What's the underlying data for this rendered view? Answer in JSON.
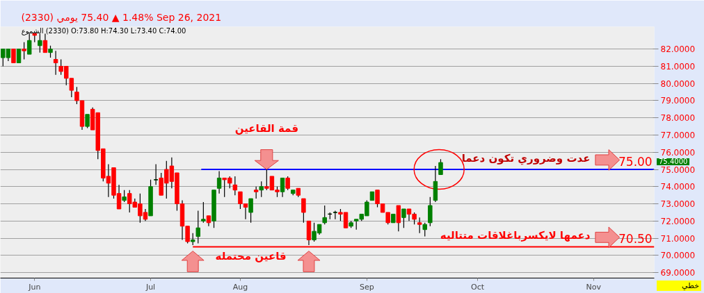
{
  "chart_data": {
    "type": "candlestick",
    "title": "(2330)  يومي   75.40 ▲ 1.48%   Sep 26, 2021",
    "subtitle": "الشموع (2330) O:73.80  H:74.30  L:73.40  C:74.00",
    "categories": [
      null,
      null,
      null,
      null,
      null,
      null,
      "Jun",
      null,
      null,
      null,
      null,
      null,
      null,
      null,
      null,
      null,
      null,
      null,
      null,
      null,
      null,
      null,
      null,
      null,
      null,
      null,
      null,
      null,
      "Jul",
      null,
      null,
      null,
      null,
      null,
      null,
      null,
      null,
      null,
      null,
      null,
      null,
      null,
      null,
      null,
      null,
      "Aug",
      null,
      null,
      null,
      null,
      null,
      null,
      null,
      null,
      null,
      null,
      null,
      null,
      null,
      null,
      null,
      null,
      null,
      null,
      null,
      null,
      null,
      null,
      null,
      "Sep",
      null,
      null,
      null,
      null,
      null,
      null,
      null,
      null,
      null,
      null,
      null,
      null,
      null,
      null,
      null,
      null,
      null,
      null,
      null,
      null,
      "Oct",
      null,
      null,
      null,
      null,
      null,
      null,
      null,
      null,
      null,
      null,
      null,
      null,
      null,
      null,
      null,
      null,
      null,
      null,
      null,
      null,
      null,
      "Nov",
      null,
      null,
      null,
      null,
      null,
      null,
      null,
      null,
      null,
      null,
      null
    ],
    "ohlc": [
      [
        81.5,
        82.0,
        81.0,
        82.0
      ],
      [
        81.5,
        82.0,
        81.3,
        82.0
      ],
      [
        82.0,
        82.0,
        81.2,
        81.2
      ],
      [
        81.2,
        82.0,
        81.2,
        82.0
      ],
      [
        82.0,
        82.4,
        81.4,
        81.9
      ],
      [
        81.7,
        82.9,
        81.7,
        82.5
      ],
      [
        82.9,
        82.9,
        82.4,
        82.8
      ],
      [
        82.2,
        82.9,
        81.8,
        82.5
      ],
      [
        82.5,
        82.9,
        81.8,
        81.8
      ],
      [
        81.8,
        82.2,
        81.5,
        82.0
      ],
      [
        81.4,
        81.9,
        80.5,
        81.2
      ],
      [
        81.0,
        81.4,
        80.5,
        80.7
      ],
      [
        81.0,
        81.0,
        79.9,
        80.3
      ],
      [
        80.3,
        80.3,
        79.2,
        79.6
      ],
      [
        79.5,
        79.8,
        78.8,
        79.0
      ],
      [
        79.0,
        79.0,
        77.3,
        77.5
      ],
      [
        77.5,
        78.2,
        77.4,
        78.2
      ],
      [
        78.5,
        78.6,
        77.3,
        77.3
      ],
      [
        78.3,
        78.3,
        75.6,
        76.1
      ],
      [
        76.2,
        76.2,
        74.3,
        74.5
      ],
      [
        74.6,
        75.3,
        73.4,
        74.2
      ],
      [
        75.1,
        75.1,
        73.3,
        73.5
      ],
      [
        73.6,
        74.1,
        72.7,
        72.7
      ],
      [
        73.2,
        73.8,
        73.1,
        73.4
      ],
      [
        73.6,
        73.8,
        72.5,
        73.0
      ],
      [
        73.1,
        73.3,
        72.8,
        72.8
      ],
      [
        73.0,
        73.6,
        71.9,
        72.3
      ],
      [
        72.5,
        72.7,
        72.0,
        72.1
      ],
      [
        72.3,
        74.4,
        72.3,
        74.0
      ],
      [
        74.4,
        75.3,
        74.1,
        74.4
      ],
      [
        74.5,
        74.8,
        73.5,
        73.5
      ],
      [
        75.0,
        75.5,
        73.3,
        74.2
      ],
      [
        75.2,
        75.7,
        73.9,
        74.3
      ],
      [
        74.8,
        74.8,
        72.6,
        73.0
      ],
      [
        73.0,
        73.2,
        70.9,
        71.7
      ],
      [
        71.7,
        71.7,
        70.7,
        70.8
      ],
      [
        70.8,
        71.3,
        70.6,
        70.9
      ],
      [
        71.1,
        72.6,
        70.7,
        71.6
      ],
      [
        72.0,
        73.1,
        71.9,
        72.1
      ],
      [
        72.3,
        72.3,
        71.7,
        71.9
      ],
      [
        72.0,
        73.8,
        71.6,
        73.8
      ],
      [
        73.9,
        74.9,
        73.6,
        74.5
      ],
      [
        74.5,
        74.5,
        73.4,
        74.4
      ],
      [
        74.5,
        74.6,
        73.9,
        74.2
      ],
      [
        74.1,
        74.6,
        73.5,
        73.8
      ],
      [
        73.7,
        73.7,
        72.7,
        73.0
      ],
      [
        73.0,
        73.0,
        72.1,
        72.8
      ],
      [
        72.5,
        73.3,
        71.9,
        73.3
      ],
      [
        73.8,
        74.0,
        73.3,
        73.7
      ],
      [
        73.8,
        74.3,
        73.4,
        74.0
      ],
      [
        74.0,
        75.0,
        73.8,
        73.9
      ],
      [
        74.6,
        74.6,
        73.8,
        73.8
      ],
      [
        73.8,
        74.0,
        73.4,
        73.7
      ],
      [
        73.7,
        74.5,
        73.4,
        74.5
      ],
      [
        74.5,
        74.6,
        73.8,
        73.9
      ],
      [
        73.6,
        73.8,
        73.5,
        73.8
      ],
      [
        73.9,
        73.9,
        73.4,
        73.5
      ],
      [
        73.3,
        73.3,
        71.9,
        72.5
      ],
      [
        72.0,
        72.0,
        70.6,
        70.9
      ],
      [
        70.9,
        71.9,
        70.8,
        71.4
      ],
      [
        71.3,
        71.8,
        71.2,
        71.8
      ],
      [
        71.9,
        72.9,
        71.8,
        72.2
      ],
      [
        72.4,
        72.5,
        72.1,
        72.4
      ],
      [
        72.5,
        72.6,
        72.1,
        72.5
      ],
      [
        72.5,
        72.7,
        72.0,
        72.4
      ],
      [
        72.5,
        72.5,
        71.6,
        71.6
      ],
      [
        71.7,
        72.0,
        71.6,
        71.9
      ],
      [
        72.0,
        72.1,
        71.5,
        72.1
      ],
      [
        72.1,
        72.4,
        72.0,
        72.4
      ],
      [
        72.3,
        73.2,
        72.3,
        73.1
      ],
      [
        73.2,
        73.7,
        73.2,
        73.7
      ],
      [
        73.8,
        73.8,
        72.8,
        73.0
      ],
      [
        73.0,
        73.0,
        72.5,
        72.5
      ],
      [
        72.5,
        72.5,
        71.8,
        71.9
      ],
      [
        71.9,
        72.4,
        71.9,
        72.4
      ],
      [
        72.9,
        72.9,
        71.4,
        71.9
      ],
      [
        72.2,
        72.7,
        71.6,
        72.7
      ],
      [
        72.7,
        72.7,
        72.0,
        72.4
      ],
      [
        72.4,
        72.5,
        71.8,
        72.1
      ],
      [
        71.9,
        72.2,
        71.3,
        71.8
      ],
      [
        71.5,
        71.9,
        71.1,
        71.8
      ],
      [
        71.9,
        73.4,
        71.7,
        72.9
      ],
      [
        73.2,
        75.2,
        73.1,
        74.3
      ],
      [
        74.7,
        75.6,
        74.7,
        75.4
      ],
      null,
      null,
      null,
      null,
      null,
      null,
      null,
      null,
      null,
      null,
      null,
      null,
      null,
      null,
      null,
      null,
      null,
      null,
      null,
      null,
      null,
      null,
      null,
      null,
      null,
      null,
      null,
      null,
      null,
      null,
      null,
      null,
      null,
      null,
      null,
      null,
      null,
      null,
      null,
      null
    ],
    "ylim": [
      68.68,
      83.3
    ],
    "yticks": [
      {
        "value": 69,
        "label": "69.0000"
      },
      {
        "value": 70,
        "label": "70.0000"
      },
      {
        "value": 71,
        "label": "71.0000"
      },
      {
        "value": 72,
        "label": "72.0000"
      },
      {
        "value": 73,
        "label": "73.0000"
      },
      {
        "value": 74,
        "label": "74.0000"
      },
      {
        "value": 75,
        "label": "75.0000"
      },
      {
        "value": 76,
        "label": "76.0000"
      },
      {
        "value": 77,
        "label": "77.0000"
      },
      {
        "value": 78,
        "label": "78.0000"
      },
      {
        "value": 79,
        "label": "79.0000"
      },
      {
        "value": 80,
        "label": "80.0000"
      },
      {
        "value": 81,
        "label": "81.0000"
      },
      {
        "value": 82,
        "label": "82.0000"
      }
    ],
    "grid": "y",
    "ref_lines": [
      {
        "axis": "y",
        "value": 75.0,
        "label": "75.00",
        "color": "#0000ff"
      },
      {
        "axis": "y",
        "value": 70.5,
        "label": "70.50",
        "color": "#ff0000"
      }
    ],
    "annotations": [
      "قمة القاعين",
      {
        "text": "قاعين محتمله",
        "y": 70.5
      },
      {
        "text": "عدت وضروري تكون دعما",
        "y": 75.0
      },
      {
        "text": "دعمها لايكسرباغلاقات متتاليه",
        "y": 70.5
      },
      "75.4000",
      "خطي"
    ]
  }
}
